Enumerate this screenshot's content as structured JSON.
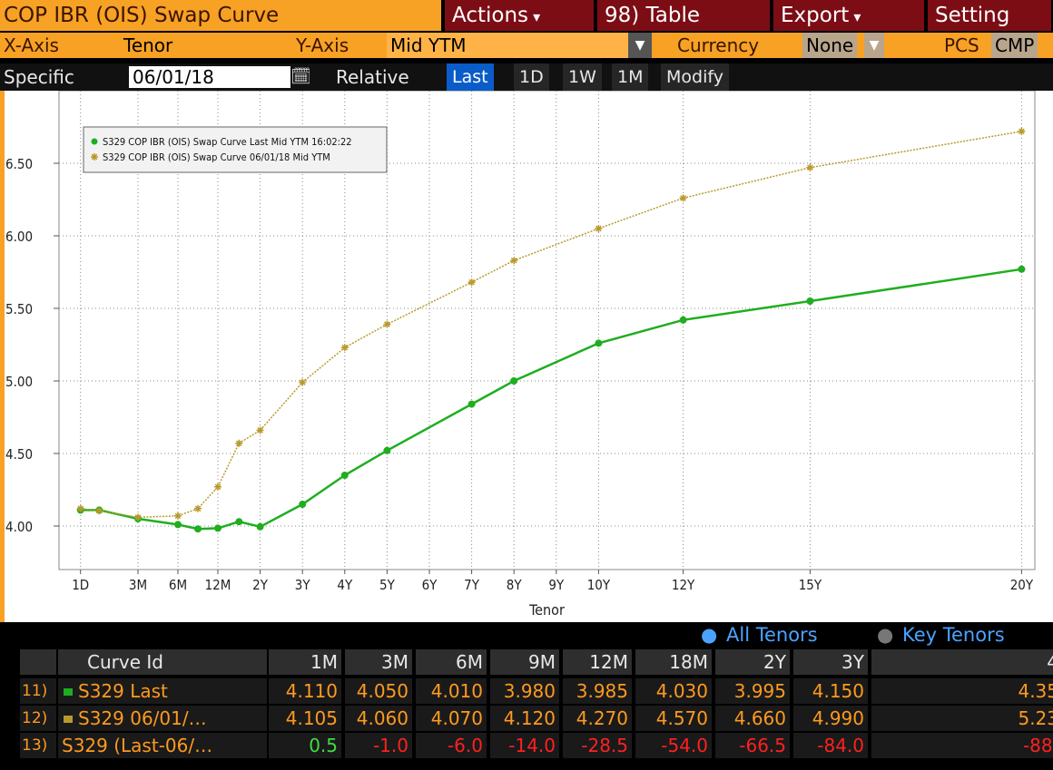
{
  "toolbar": {
    "title": "COP IBR (OIS) Swap Curve",
    "buttons": [
      "Actions",
      "98) Table",
      "Export",
      "Setting"
    ]
  },
  "controls": {
    "x_axis_label": "X-Axis",
    "x_axis_value": "Tenor",
    "y_axis_label": "Y-Axis",
    "y_axis_value": "Mid YTM",
    "currency_label": "Currency",
    "currency_value": "None",
    "pcs": "PCS",
    "cmp": "CMP"
  },
  "date_bar": {
    "specific": "Specific",
    "date": "06/01/18",
    "relative": "Relative",
    "buttons": [
      "Last",
      "1D",
      "1W",
      "1M",
      "Modify"
    ]
  },
  "chart_data": {
    "type": "line",
    "x": [
      "1D",
      "1M",
      "3M",
      "6M",
      "9M",
      "12M",
      "18M",
      "2Y",
      "3Y",
      "4Y",
      "5Y",
      "7Y",
      "8Y",
      "10Y",
      "12Y",
      "15Y",
      "20Y"
    ],
    "series": [
      {
        "name": "S329 COP IBR (OIS) Swap Curve Last Mid YTM 16:02:22",
        "color": "#1fae1f",
        "marker": "circle",
        "values": [
          4.11,
          4.11,
          4.05,
          4.01,
          3.98,
          3.985,
          4.03,
          3.995,
          4.15,
          4.35,
          4.52,
          4.84,
          5.0,
          5.26,
          5.42,
          5.55,
          5.77
        ]
      },
      {
        "name": "S329 COP IBR (OIS) Swap Curve 06/01/18 Mid YTM",
        "color": "#b89a2c",
        "marker": "star",
        "values": [
          4.12,
          4.105,
          4.06,
          4.07,
          4.12,
          4.27,
          4.57,
          4.66,
          4.99,
          5.23,
          5.39,
          5.68,
          5.83,
          6.05,
          6.26,
          6.47,
          6.72
        ]
      }
    ],
    "xticks": [
      "1D",
      "3M",
      "6M",
      "12M",
      "2Y",
      "3Y",
      "4Y",
      "5Y",
      "6Y",
      "7Y",
      "8Y",
      "9Y",
      "10Y",
      "12Y",
      "15Y",
      "20Y"
    ],
    "xlabel": "Tenor",
    "ylim": [
      3.7,
      7.0
    ],
    "yticks": [
      {
        "value": 4,
        "label": "4.00"
      },
      {
        "value": 4.5,
        "label": "4.50"
      },
      {
        "value": 5,
        "label": "5.00"
      },
      {
        "value": 5.5,
        "label": "5.50"
      },
      {
        "value": 6,
        "label": "6.00"
      },
      {
        "value": 6.5,
        "label": "6.50"
      }
    ],
    "grid": true,
    "legend": "upper left"
  },
  "tenor_toggle": [
    "All Tenors",
    "Key Tenors"
  ],
  "table": {
    "header": [
      "Curve Id",
      "1M",
      "3M",
      "6M",
      "9M",
      "12M",
      "18M",
      "2Y",
      "3Y",
      "4"
    ],
    "rows": [
      {
        "num": "11)",
        "id": "S329 Last",
        "color": "#1fae1f",
        "values": [
          "4.110",
          "4.050",
          "4.010",
          "3.980",
          "3.985",
          "4.030",
          "3.995",
          "4.150",
          "4.35"
        ]
      },
      {
        "num": "12)",
        "id": "S329 06/01/…",
        "color": "#b89a2c",
        "values": [
          "4.105",
          "4.060",
          "4.070",
          "4.120",
          "4.270",
          "4.570",
          "4.660",
          "4.990",
          "5.23"
        ]
      },
      {
        "num": "13)",
        "id": "S329 (Last-06/…",
        "values": [
          "0.5",
          "-1.0",
          "-6.0",
          "-14.0",
          "-28.5",
          "-54.0",
          "-66.5",
          "-84.0",
          "-88."
        ]
      }
    ]
  }
}
